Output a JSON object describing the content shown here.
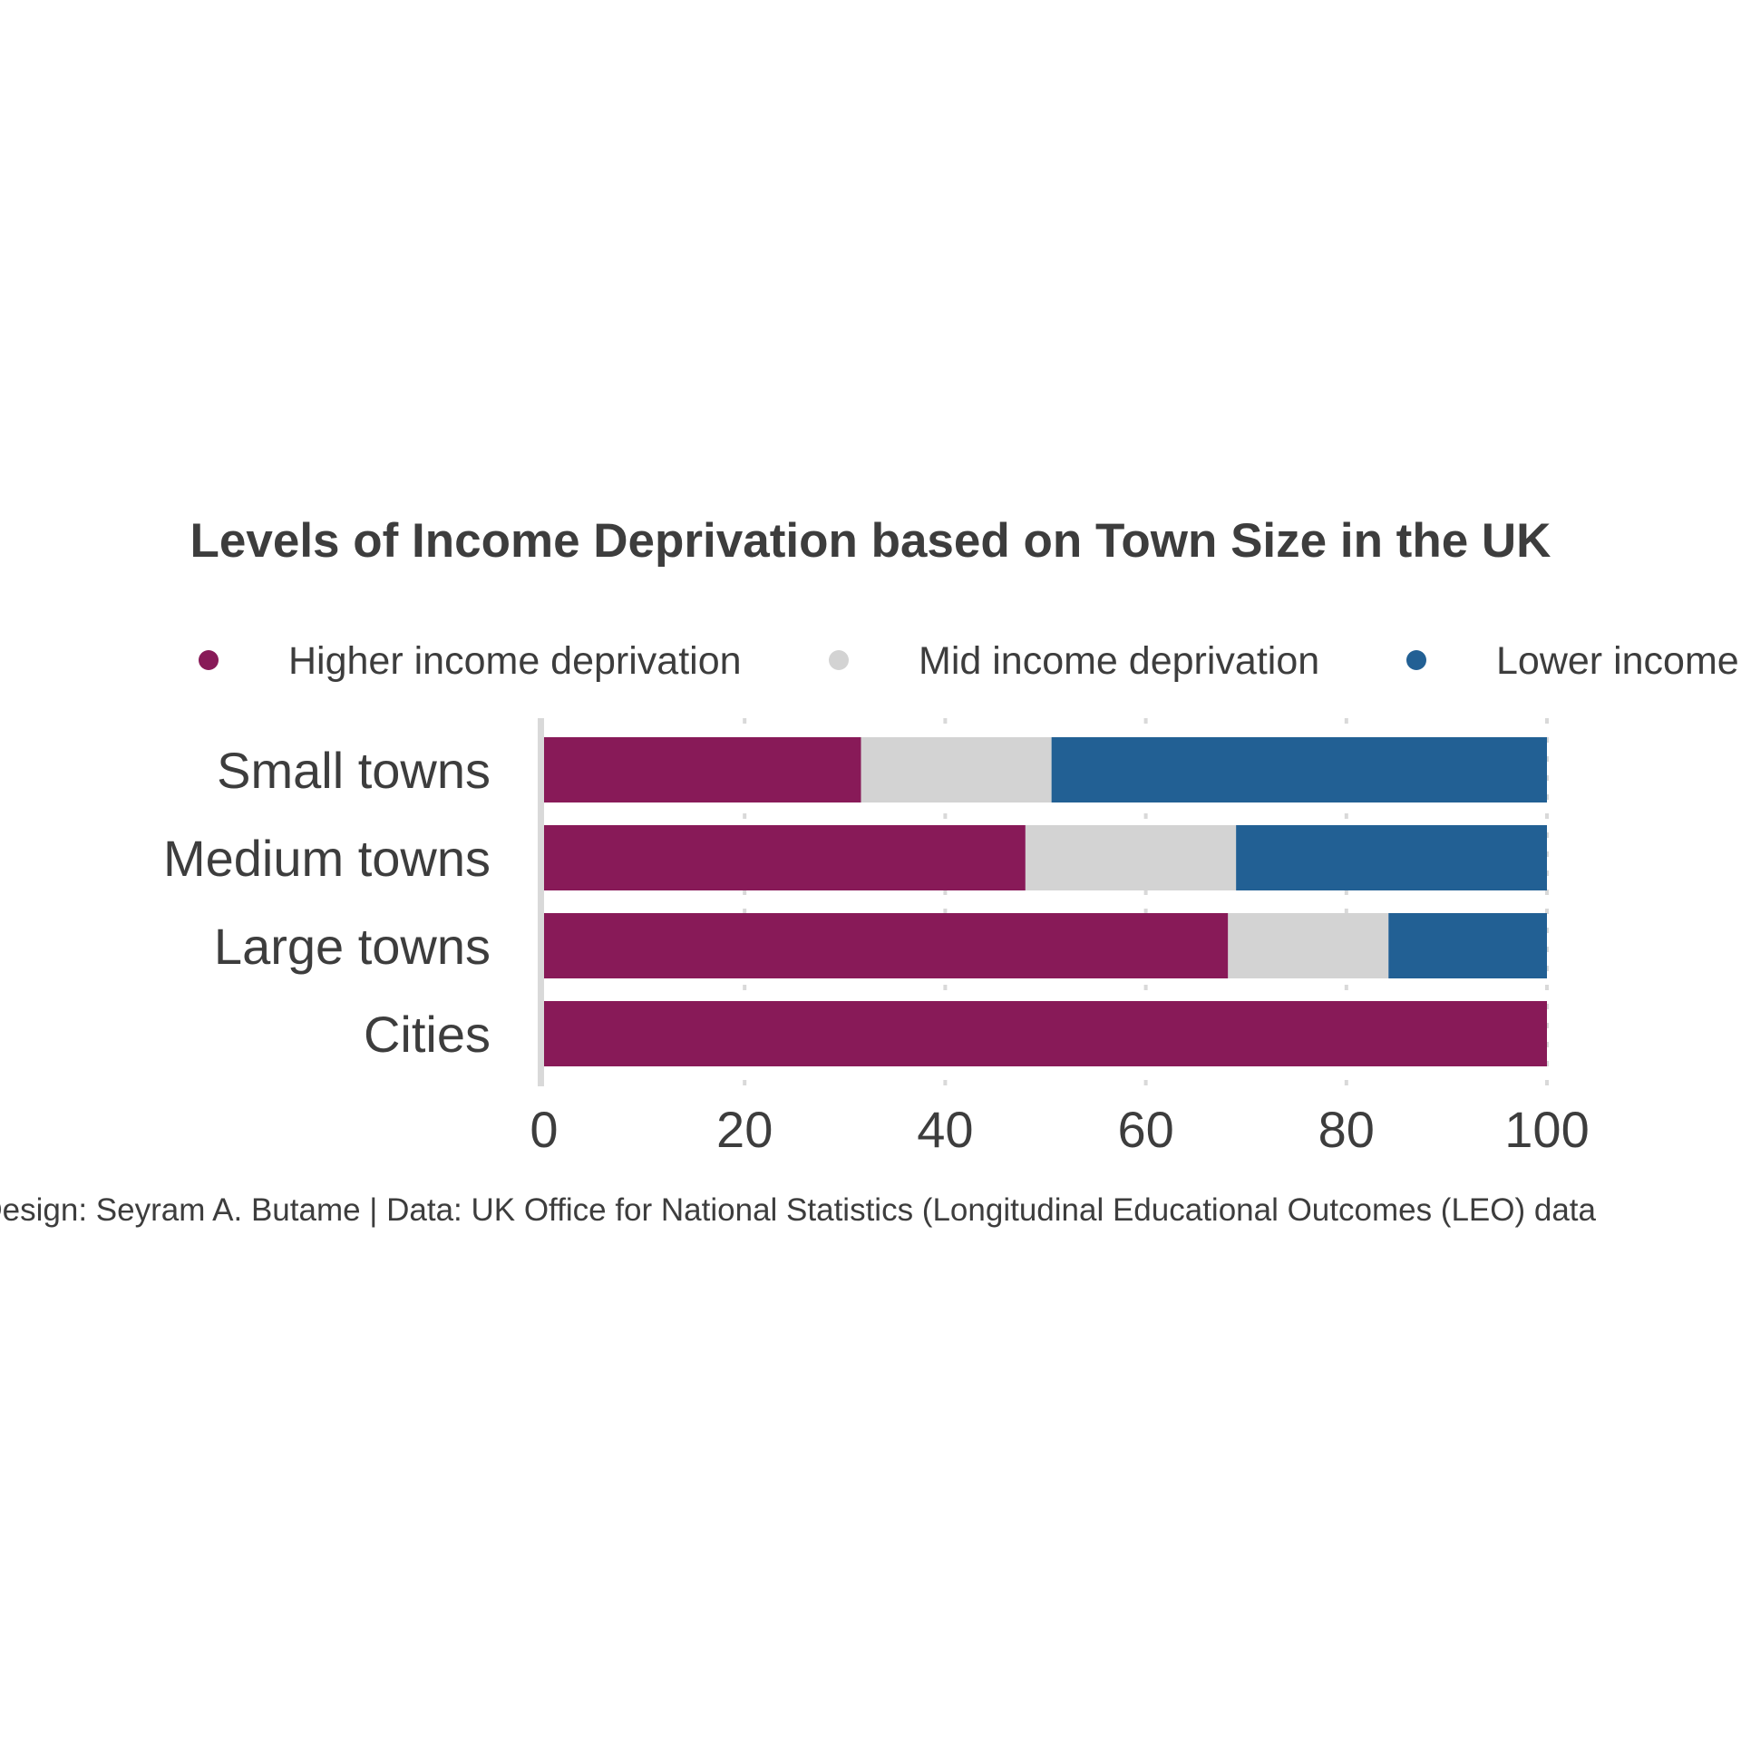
{
  "chart_data": {
    "type": "bar",
    "orientation": "horizontal",
    "stacked": true,
    "title": "Levels of Income Deprivation based on Town Size in the UK",
    "caption": "Design: Seyram A. Butame | Data:  UK Office for National Statistics (Longitudinal Educational Outcomes (LEO) data",
    "categories": [
      "Small towns",
      "Medium towns",
      "Large towns",
      "Cities"
    ],
    "series": [
      {
        "name": "Higher income deprivation",
        "color": "#881a58",
        "values": [
          31.6,
          48.0,
          68.2,
          100
        ]
      },
      {
        "name": "Mid income deprivation",
        "color": "#d3d3d3",
        "values": [
          19.0,
          21.0,
          16.0,
          0
        ]
      },
      {
        "name": "Lower income deprivation",
        "color": "#226094",
        "values": [
          49.4,
          31.0,
          15.8,
          0
        ]
      }
    ],
    "xlim": [
      0,
      100
    ],
    "xticks": [
      "0",
      "20",
      "40",
      "60",
      "80",
      "100"
    ],
    "xlabel": "",
    "ylabel": "",
    "grid": "vertical dashed",
    "legend_position": "top"
  }
}
